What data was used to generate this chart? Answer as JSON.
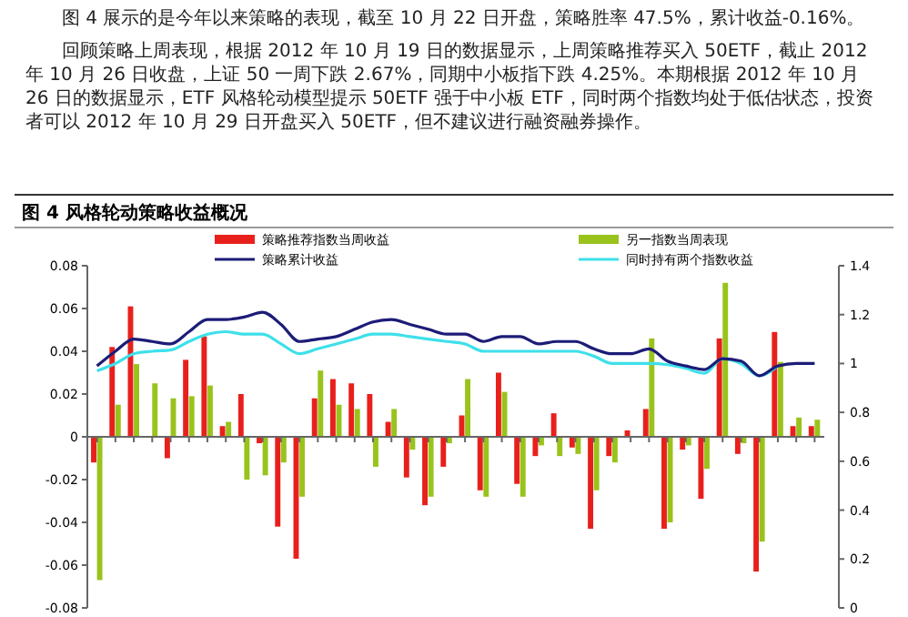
{
  "chart_data": {
    "type": "bar",
    "title": "图 4 风格轮动策略收益概况",
    "annotations": [
      "图 4 展示的是今年以来策略的表现，截至 10 月 22 日开盘，策略胜率 47.5%，累计收益-0.16%。",
      "回顾策略上周表现，根据 2012 年 10 月 19 日的数据显示，上周策略推荐买入 50ETF，截止 2012 年 10 月 26 日收盘，上证 50 一周下跌 2.67%，同期中小板指下跌 4.25%。本期根据 2012 年 10 月 26 日的数据显示，ETF 风格轮动模型提示 50ETF 强于中小板 ETF，同时两个指数均处于低估状态，投资者可以 2012 年 10 月 29 日开盘买入 50ETF，但不建议进行融资融券操作。"
    ],
    "categories": [
      null,
      null,
      null,
      null,
      null,
      null,
      null,
      null,
      null,
      null,
      null,
      null,
      null,
      null,
      null,
      null,
      null,
      null,
      null,
      null,
      null,
      null,
      null,
      null,
      null,
      null,
      null,
      null,
      null,
      null,
      null,
      null,
      null,
      null,
      null,
      null,
      null,
      null,
      null,
      null
    ],
    "series": [
      {
        "name": "策略推荐指数当周收益",
        "color": "#e8201c",
        "values": [
          -0.012,
          0.042,
          0.061,
          null,
          -0.01,
          0.036,
          0.047,
          0.005,
          0.02,
          -0.003,
          -0.042,
          -0.057,
          0.018,
          0.027,
          0.025,
          0.02,
          0.007,
          -0.019,
          -0.032,
          -0.014,
          0.01,
          -0.025,
          0.03,
          -0.022,
          -0.009,
          0.011,
          -0.005,
          -0.043,
          -0.009,
          0.003,
          0.013,
          -0.043,
          -0.006,
          -0.029,
          0.046,
          -0.008,
          -0.063,
          0.049,
          0.005,
          0.005
        ]
      },
      {
        "name": "另一指数当周表现",
        "color": "#99c31c",
        "values": [
          -0.067,
          0.015,
          0.034,
          0.025,
          0.018,
          0.019,
          0.024,
          0.007,
          -0.02,
          -0.018,
          -0.012,
          -0.028,
          0.031,
          0.015,
          0.013,
          -0.014,
          0.013,
          -0.006,
          -0.028,
          -0.003,
          0.027,
          -0.028,
          0.021,
          -0.028,
          -0.004,
          -0.009,
          -0.008,
          -0.025,
          -0.012,
          null,
          0.046,
          -0.04,
          -0.004,
          -0.015,
          0.072,
          -0.003,
          -0.049,
          0.035,
          0.009,
          0.008
        ]
      },
      {
        "name": "策略累计收益",
        "type": "line",
        "axis": "y2",
        "color": "#1c1c78",
        "values": [
          0.99,
          1.05,
          1.1,
          1.09,
          1.08,
          1.13,
          1.18,
          1.18,
          1.19,
          1.21,
          1.16,
          1.09,
          1.1,
          1.11,
          1.14,
          1.17,
          1.18,
          1.16,
          1.14,
          1.12,
          1.12,
          1.09,
          1.11,
          1.11,
          1.08,
          1.09,
          1.09,
          1.06,
          1.04,
          1.04,
          1.06,
          1.01,
          0.99,
          0.975,
          1.02,
          1.01,
          0.95,
          0.99,
          1.0,
          1.0
        ]
      },
      {
        "name": "同时持有两个指数收益",
        "type": "line",
        "axis": "y2",
        "color": "#3ee0ea",
        "values": [
          0.97,
          1.0,
          1.04,
          1.05,
          1.055,
          1.09,
          1.12,
          1.13,
          1.12,
          1.12,
          1.08,
          1.04,
          1.06,
          1.08,
          1.1,
          1.12,
          1.12,
          1.11,
          1.1,
          1.09,
          1.08,
          1.05,
          1.05,
          1.05,
          1.05,
          1.05,
          1.05,
          1.03,
          1.0,
          1.0,
          1.0,
          0.995,
          0.98,
          0.96,
          1.02,
          1.0,
          0.95,
          0.99,
          null,
          null
        ]
      }
    ],
    "ylim": [
      -0.08,
      0.08
    ],
    "yticks": [
      -0.08,
      -0.06,
      -0.04,
      -0.02,
      0,
      0.02,
      0.04,
      0.06,
      0.08
    ],
    "y2lim": [
      0,
      1.4
    ],
    "y2ticks": [
      0,
      0.2,
      0.4,
      0.6,
      0.8,
      1,
      1.2,
      1.4
    ],
    "legend": "top"
  }
}
